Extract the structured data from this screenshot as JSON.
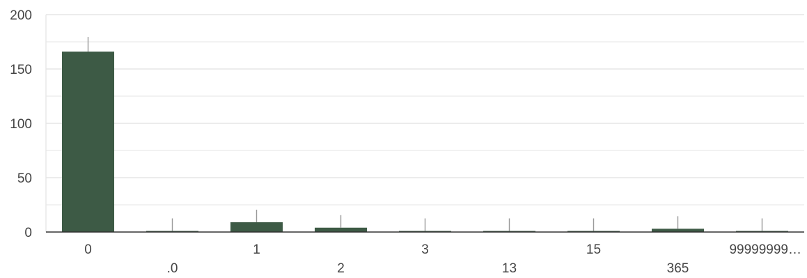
{
  "chart_data": {
    "type": "bar",
    "title": "",
    "xlabel": "",
    "ylabel": "",
    "categories": [
      "0",
      ".0",
      "1",
      "2",
      "3",
      "13",
      "15",
      "365",
      "99999999…"
    ],
    "values": [
      166,
      1,
      9,
      4,
      1,
      1,
      1,
      3,
      1
    ],
    "ylim": [
      0,
      200
    ],
    "yticks": [
      "0",
      "50",
      "100",
      "150",
      "200"
    ],
    "grid": true,
    "legend": "none",
    "bar_color": "#3d5a45",
    "grid_color": "#e6e6e6",
    "axis_color": "#333333",
    "whisker_color": "#999999"
  }
}
